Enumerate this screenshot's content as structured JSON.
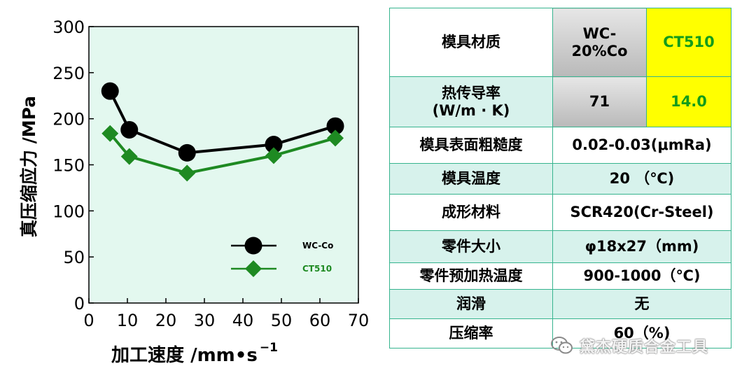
{
  "chart_data": {
    "type": "line",
    "xlabel": "加工速度 /mm•s",
    "xlabel_sup": "−1",
    "ylabel": "真压缩应力 /MPa",
    "xlim": [
      0,
      70
    ],
    "ylim": [
      0,
      300
    ],
    "x_ticks": [
      "0",
      "10",
      "20",
      "30",
      "40",
      "50",
      "60",
      "70"
    ],
    "y_ticks": [
      "0",
      "50",
      "100",
      "150",
      "200",
      "250",
      "300"
    ],
    "x_tick_values": [
      0,
      10,
      20,
      30,
      40,
      50,
      60,
      70
    ],
    "y_tick_values": [
      0,
      50,
      100,
      150,
      200,
      250,
      300
    ],
    "grid": false,
    "legend_position": "lower-right",
    "plot_background": "#e3f8ef",
    "series": [
      {
        "name": "WC-Co",
        "marker": "circle",
        "color": "#000000",
        "x": [
          5.5,
          10.5,
          25.5,
          48,
          64
        ],
        "y": [
          230,
          188,
          163,
          172,
          192
        ]
      },
      {
        "name": "CT510",
        "marker": "diamond",
        "color": "#1e8a22",
        "x": [
          5.5,
          10.5,
          25.5,
          48,
          64
        ],
        "y": [
          184,
          159,
          141,
          160,
          179
        ]
      }
    ]
  },
  "table": {
    "rows": [
      {
        "label": "模具材质",
        "wc": "WC-\n20%Co",
        "ct": "CT510"
      },
      {
        "label": "热传导率\n(W/m · K)",
        "wc": "71",
        "ct": "14.0"
      },
      {
        "label": "模具表面粗糙度",
        "value": "0.02-0.03(μmRa)"
      },
      {
        "label": "模具温度",
        "value": "20 （℃)"
      },
      {
        "label": "成形材料",
        "value": "SCR420(Cr-Steel)"
      },
      {
        "label": "零件大小",
        "value": "φ18x27（mm)"
      },
      {
        "label": "零件预加热温度",
        "value": "900-1000（℃)"
      },
      {
        "label": "润滑",
        "value": "无"
      },
      {
        "label": "压缩率",
        "value": "60（%)"
      }
    ]
  },
  "watermark": {
    "text": "黛杰硬质合金工具",
    "icon": "wechat-icon"
  },
  "colors": {
    "table_border": "#36b48e",
    "row_tint": "#d7f2ec",
    "highlight": "#ffff00",
    "highlight_text": "#129c1b"
  }
}
